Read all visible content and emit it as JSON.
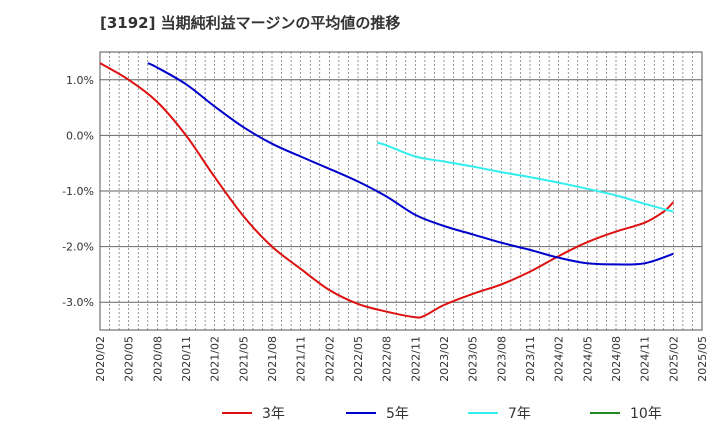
{
  "chart_data": {
    "type": "line",
    "title": "[3192]  当期純利益マージンの平均値の推移",
    "xlabel": "",
    "ylabel": "",
    "x_ticks": [
      "2020/02",
      "2020/05",
      "2020/08",
      "2020/11",
      "2021/02",
      "2021/05",
      "2021/08",
      "2021/11",
      "2022/02",
      "2022/05",
      "2022/08",
      "2022/11",
      "2023/02",
      "2023/05",
      "2023/08",
      "2023/11",
      "2024/02",
      "2024/05",
      "2024/08",
      "2024/11",
      "2025/02",
      "2025/05"
    ],
    "y_ticks": [
      {
        "value": 1.0,
        "label": "1.0%"
      },
      {
        "value": 0.0,
        "label": "0.0%"
      },
      {
        "value": -1.0,
        "label": "-1.0%"
      },
      {
        "value": -2.0,
        "label": "-2.0%"
      },
      {
        "value": -3.0,
        "label": "-3.0%"
      }
    ],
    "ylim": [
      -3.5,
      1.5
    ],
    "grid": true,
    "legend_position": "bottom",
    "series": [
      {
        "name": "3年",
        "color": "#dd1111",
        "x": [
          "2020/02",
          "2020/05",
          "2020/08",
          "2020/11",
          "2021/02",
          "2021/05",
          "2021/08",
          "2021/11",
          "2022/02",
          "2022/05",
          "2022/08",
          "2022/11",
          "2022/12",
          "2023/02",
          "2023/05",
          "2023/08",
          "2023/11",
          "2024/02",
          "2024/05",
          "2024/08",
          "2024/11",
          "2025/01",
          "2025/02"
        ],
        "values": [
          1.3,
          1.0,
          0.6,
          0.0,
          -0.75,
          -1.45,
          -2.0,
          -2.4,
          -2.78,
          -3.03,
          -3.17,
          -3.27,
          -3.24,
          -3.05,
          -2.85,
          -2.68,
          -2.45,
          -2.17,
          -1.92,
          -1.73,
          -1.57,
          -1.37,
          -1.2
        ]
      },
      {
        "name": "5年",
        "color": "#0000cc",
        "x": [
          "2020/07",
          "2020/08",
          "2020/11",
          "2021/02",
          "2021/05",
          "2021/08",
          "2021/11",
          "2022/02",
          "2022/05",
          "2022/08",
          "2022/11",
          "2023/02",
          "2023/05",
          "2023/08",
          "2023/11",
          "2024/02",
          "2024/05",
          "2024/08",
          "2024/11",
          "2025/02"
        ],
        "values": [
          1.3,
          1.22,
          0.92,
          0.52,
          0.15,
          -0.15,
          -0.38,
          -0.6,
          -0.83,
          -1.1,
          -1.43,
          -1.63,
          -1.78,
          -1.93,
          -2.06,
          -2.2,
          -2.3,
          -2.32,
          -2.3,
          -2.13
        ]
      },
      {
        "name": "7年",
        "color": "#33eeee",
        "x": [
          "2022/07",
          "2022/08",
          "2022/11",
          "2023/02",
          "2023/05",
          "2023/08",
          "2023/11",
          "2024/02",
          "2024/05",
          "2024/08",
          "2024/11",
          "2025/02"
        ],
        "values": [
          -0.13,
          -0.18,
          -0.38,
          -0.47,
          -0.56,
          -0.66,
          -0.75,
          -0.85,
          -0.96,
          -1.08,
          -1.23,
          -1.37
        ]
      },
      {
        "name": "10年",
        "color": "#228822",
        "x": [],
        "values": []
      }
    ]
  }
}
